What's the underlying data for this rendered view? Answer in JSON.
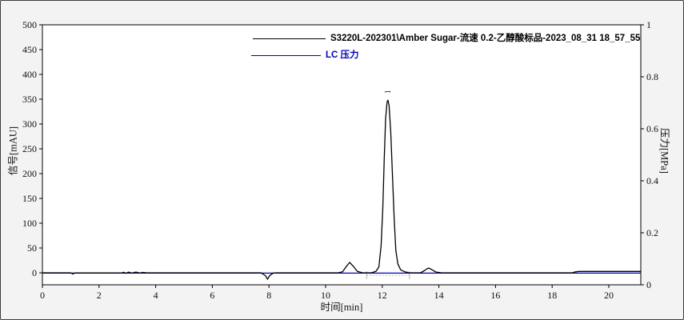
{
  "chart_data": {
    "type": "line",
    "title": "",
    "xlabel": "时间[min]",
    "ylabel_left": "信号[mAU]",
    "ylabel_right": "压力[MPa]",
    "xlim": [
      0,
      21.13
    ],
    "ylim_left": [
      -24.2,
      500
    ],
    "ylim_right": [
      0,
      1
    ],
    "x_ticks": [
      0,
      2,
      4,
      6,
      8,
      10,
      12,
      14,
      16,
      18,
      20
    ],
    "y_ticks_left": [
      0,
      50,
      100,
      150,
      200,
      250,
      300,
      350,
      400,
      450,
      500
    ],
    "y_ticks_right": [
      0,
      0.2,
      0.4,
      0.6,
      0.8,
      1
    ],
    "grid": false,
    "legend_position": "top-center",
    "legend": [
      {
        "label": "S3220L-202301\\Amber Sugar-流速 0.2-乙醇酸标品-2023_08_31 18_57_55",
        "color": "#000000"
      },
      {
        "label": "LC 压力",
        "color": "#0000b8"
      }
    ],
    "series": [
      {
        "name": "signal",
        "axis": "right",
        "color": "#0000b8",
        "line_name": "pressure-line",
        "points": [
          [
            0,
            0.045
          ],
          [
            21.13,
            0.045
          ]
        ]
      },
      {
        "name": "S3220L-202301\\Amber Sugar-流速 0.2-乙醇酸标品-2023_08_31 18_57_55",
        "axis": "left",
        "color": "#000000",
        "line_name": "signal-line",
        "points": [
          [
            0,
            0
          ],
          [
            1.0,
            0
          ],
          [
            1.07,
            -2.5
          ],
          [
            1.15,
            -0.3
          ],
          [
            2.8,
            -0.3
          ],
          [
            2.87,
            1.2
          ],
          [
            2.95,
            -1
          ],
          [
            3.05,
            1.5
          ],
          [
            3.15,
            -0.6
          ],
          [
            3.3,
            1.4
          ],
          [
            3.45,
            -0.5
          ],
          [
            3.55,
            0.8
          ],
          [
            3.68,
            0
          ],
          [
            7.72,
            0
          ],
          [
            7.88,
            -6
          ],
          [
            7.95,
            -13
          ],
          [
            8.02,
            -6
          ],
          [
            8.15,
            -0.5
          ],
          [
            8.3,
            0
          ],
          [
            10.45,
            0
          ],
          [
            10.6,
            2
          ],
          [
            10.72,
            12
          ],
          [
            10.85,
            21
          ],
          [
            10.98,
            13
          ],
          [
            11.12,
            3
          ],
          [
            11.3,
            0
          ],
          [
            11.62,
            0
          ],
          [
            11.78,
            3
          ],
          [
            11.88,
            12
          ],
          [
            11.96,
            55
          ],
          [
            12.02,
            130
          ],
          [
            12.07,
            230
          ],
          [
            12.12,
            310
          ],
          [
            12.17,
            344
          ],
          [
            12.2,
            348
          ],
          [
            12.24,
            338
          ],
          [
            12.3,
            285
          ],
          [
            12.36,
            200
          ],
          [
            12.42,
            110
          ],
          [
            12.48,
            45
          ],
          [
            12.55,
            18
          ],
          [
            12.65,
            6
          ],
          [
            12.8,
            2
          ],
          [
            12.96,
            0
          ],
          [
            13.35,
            0
          ],
          [
            13.48,
            4
          ],
          [
            13.58,
            8
          ],
          [
            13.65,
            9.5
          ],
          [
            13.76,
            6
          ],
          [
            13.9,
            1.5
          ],
          [
            14.1,
            0
          ],
          [
            18.72,
            0
          ],
          [
            18.82,
            2
          ],
          [
            18.95,
            2.8
          ],
          [
            21.13,
            2.8
          ]
        ]
      }
    ],
    "peaks": [
      {
        "label": "1",
        "rt_min": 12.2,
        "height_mAU": 348
      }
    ],
    "integration_marks": {
      "start_min": 11.45,
      "end_min": 12.96,
      "level_mAU": -5,
      "color": "#b4b4b4"
    }
  }
}
